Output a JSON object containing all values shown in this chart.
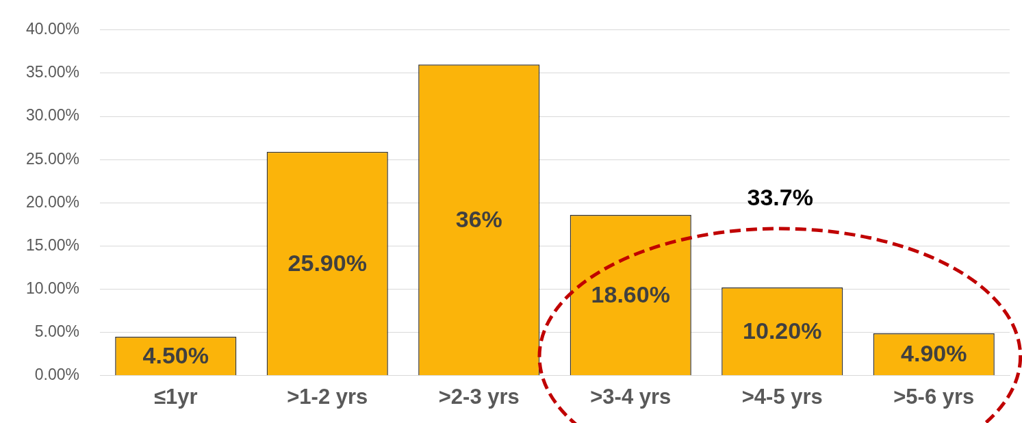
{
  "chart_data": {
    "type": "bar",
    "categories": [
      "≤1yr",
      ">1-2 yrs",
      ">2-3 yrs",
      ">3-4 yrs",
      ">4-5 yrs",
      ">5-6 yrs"
    ],
    "values": [
      4.5,
      25.9,
      36,
      18.6,
      10.2,
      4.9
    ],
    "color": "#fbb40a",
    "value_labels": [
      "4.50%",
      "25.90%",
      "36%",
      "18.60%",
      "10.20%",
      "4.90%"
    ],
    "ylim": [
      0,
      40
    ],
    "yticks": [
      {
        "value": 0,
        "label": "0.00%"
      },
      {
        "value": 5,
        "label": "5.00%"
      },
      {
        "value": 10,
        "label": "10.00%"
      },
      {
        "value": 15,
        "label": "15.00%"
      },
      {
        "value": 20,
        "label": "20.00%"
      },
      {
        "value": 25,
        "label": "25.00%"
      },
      {
        "value": 30,
        "label": "30.00%"
      },
      {
        "value": 35,
        "label": "35.00%"
      },
      {
        "value": 40,
        "label": "40.00%"
      }
    ],
    "grid": "y",
    "legend": false,
    "annotations": [
      "33.7%"
    ]
  }
}
